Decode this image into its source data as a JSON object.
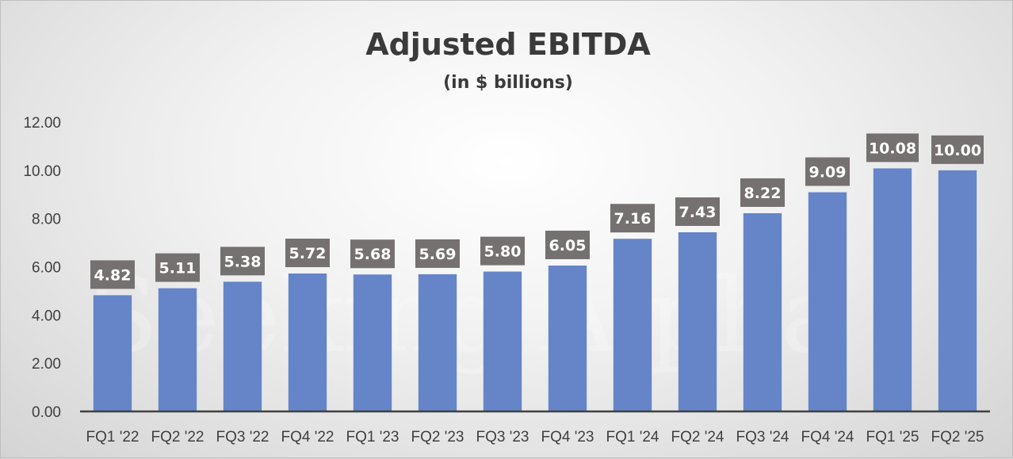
{
  "chart_data": {
    "type": "bar",
    "title": "Adjusted EBITDA",
    "subtitle": "(in $ billions)",
    "categories": [
      "FQ1 '22",
      "FQ2 '22",
      "FQ3 '22",
      "FQ4 '22",
      "FQ1 '23",
      "FQ2 '23",
      "FQ3 '23",
      "FQ4 '23",
      "FQ1 '24",
      "FQ2 '24",
      "FQ3 '24",
      "FQ4 '24",
      "FQ1 '25",
      "FQ2 '25"
    ],
    "values": [
      4.82,
      5.11,
      5.38,
      5.72,
      5.68,
      5.69,
      5.8,
      6.05,
      7.16,
      7.43,
      8.22,
      9.09,
      10.08,
      10.0
    ],
    "data_labels": [
      "4.82",
      "5.11",
      "5.38",
      "5.72",
      "5.68",
      "5.69",
      "5.80",
      "6.05",
      "7.16",
      "7.43",
      "8.22",
      "9.09",
      "10.08",
      "10.00"
    ],
    "yticks": [
      "0.00",
      "2.00",
      "4.00",
      "6.00",
      "8.00",
      "10.00",
      "12.00"
    ],
    "ylim": [
      0,
      12
    ],
    "xlabel": "",
    "ylabel": "",
    "grid": false,
    "legend": "none",
    "bar_color": "#6585c8",
    "label_box_color": "#767171",
    "watermark": "Seeking Alpha"
  }
}
